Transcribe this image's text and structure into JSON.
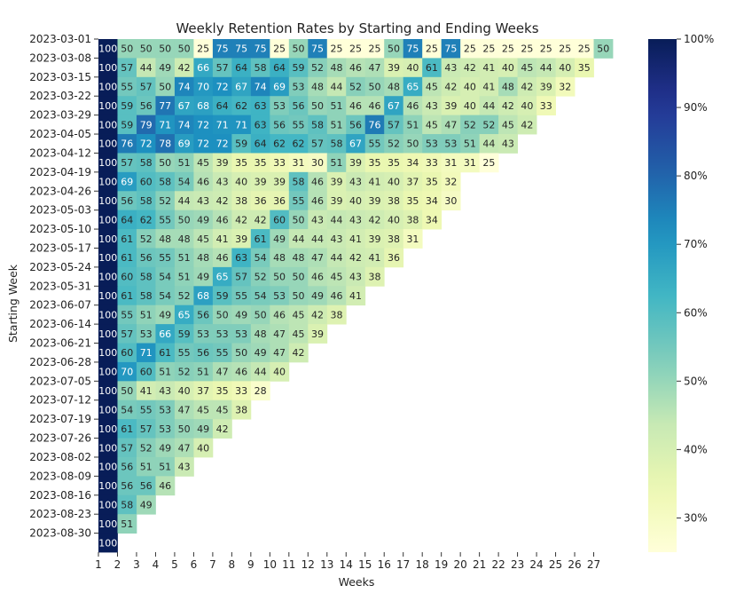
{
  "chart_data": {
    "type": "heatmap",
    "title": "Weekly Retention Rates by Starting and Ending Weeks",
    "xlabel": "Weeks",
    "ylabel": "Starting Week",
    "x": [
      1,
      2,
      3,
      4,
      5,
      6,
      7,
      8,
      9,
      10,
      11,
      12,
      13,
      14,
      15,
      16,
      17,
      18,
      19,
      20,
      21,
      22,
      23,
      24,
      25,
      26,
      27
    ],
    "y": [
      "2023-03-01",
      "2023-03-08",
      "2023-03-15",
      "2023-03-22",
      "2023-03-29",
      "2023-04-05",
      "2023-04-12",
      "2023-04-19",
      "2023-04-26",
      "2023-05-03",
      "2023-05-10",
      "2023-05-17",
      "2023-05-24",
      "2023-05-31",
      "2023-06-07",
      "2023-06-14",
      "2023-06-21",
      "2023-06-28",
      "2023-07-05",
      "2023-07-12",
      "2023-07-19",
      "2023-07-26",
      "2023-08-02",
      "2023-08-09",
      "2023-08-16",
      "2023-08-23",
      "2023-08-30"
    ],
    "values": [
      [
        100,
        50,
        50,
        50,
        50,
        25,
        75,
        75,
        75,
        25,
        50,
        75,
        25,
        25,
        25,
        50,
        75,
        25,
        75,
        25,
        25,
        25,
        25,
        25,
        25,
        25,
        50
      ],
      [
        100,
        57,
        44,
        49,
        42,
        66,
        57,
        64,
        58,
        64,
        59,
        52,
        48,
        46,
        47,
        39,
        40,
        61,
        43,
        42,
        41,
        40,
        45,
        44,
        40,
        35
      ],
      [
        100,
        55,
        57,
        50,
        74,
        70,
        72,
        67,
        74,
        69,
        53,
        48,
        44,
        52,
        50,
        48,
        65,
        45,
        42,
        40,
        41,
        48,
        42,
        39,
        32
      ],
      [
        100,
        59,
        56,
        77,
        67,
        68,
        64,
        62,
        63,
        53,
        56,
        50,
        51,
        46,
        46,
        67,
        46,
        43,
        39,
        40,
        44,
        42,
        40,
        33
      ],
      [
        100,
        59,
        79,
        71,
        74,
        72,
        71,
        71,
        63,
        56,
        55,
        58,
        51,
        56,
        76,
        57,
        51,
        45,
        47,
        52,
        52,
        45,
        42
      ],
      [
        100,
        76,
        72,
        78,
        69,
        72,
        72,
        59,
        64,
        62,
        62,
        57,
        58,
        67,
        55,
        52,
        50,
        53,
        53,
        51,
        44,
        43
      ],
      [
        100,
        57,
        58,
        50,
        51,
        45,
        39,
        35,
        35,
        33,
        31,
        30,
        51,
        39,
        35,
        35,
        34,
        33,
        31,
        31,
        25
      ],
      [
        100,
        69,
        60,
        58,
        54,
        46,
        43,
        40,
        39,
        39,
        58,
        46,
        39,
        43,
        41,
        40,
        37,
        35,
        32
      ],
      [
        100,
        56,
        58,
        52,
        44,
        43,
        42,
        38,
        36,
        36,
        55,
        46,
        39,
        40,
        39,
        38,
        35,
        34,
        30
      ],
      [
        100,
        64,
        62,
        55,
        50,
        49,
        46,
        42,
        42,
        60,
        50,
        43,
        44,
        43,
        42,
        40,
        38,
        34
      ],
      [
        100,
        61,
        52,
        48,
        48,
        45,
        41,
        39,
        61,
        49,
        44,
        44,
        43,
        41,
        39,
        38,
        31
      ],
      [
        100,
        61,
        56,
        55,
        51,
        48,
        46,
        63,
        54,
        48,
        48,
        47,
        44,
        42,
        41,
        36
      ],
      [
        100,
        60,
        58,
        54,
        51,
        49,
        65,
        57,
        52,
        50,
        50,
        46,
        45,
        43,
        38
      ],
      [
        100,
        61,
        58,
        54,
        52,
        68,
        59,
        55,
        54,
        53,
        50,
        49,
        46,
        41
      ],
      [
        100,
        55,
        51,
        49,
        65,
        56,
        50,
        49,
        50,
        46,
        45,
        42,
        38
      ],
      [
        100,
        57,
        53,
        66,
        59,
        53,
        53,
        53,
        48,
        47,
        45,
        39
      ],
      [
        100,
        60,
        71,
        61,
        55,
        56,
        55,
        50,
        49,
        47,
        42
      ],
      [
        100,
        70,
        60,
        51,
        52,
        51,
        47,
        46,
        44,
        40
      ],
      [
        100,
        50,
        41,
        43,
        40,
        37,
        35,
        33,
        28
      ],
      [
        100,
        54,
        55,
        53,
        47,
        45,
        45,
        38
      ],
      [
        100,
        61,
        57,
        53,
        50,
        49,
        42
      ],
      [
        100,
        57,
        52,
        49,
        47,
        40
      ],
      [
        100,
        56,
        51,
        51,
        43
      ],
      [
        100,
        56,
        56,
        46
      ],
      [
        100,
        58,
        49
      ],
      [
        100,
        51
      ],
      [
        100
      ]
    ],
    "colormap": "YlGnBu",
    "vmin": 25,
    "vmax": 100,
    "colorbar_ticks": [
      "30%",
      "40%",
      "50%",
      "60%",
      "70%",
      "80%",
      "90%",
      "100%"
    ],
    "colorbar_tick_values": [
      30,
      40,
      50,
      60,
      70,
      80,
      90,
      100
    ],
    "grid": false
  }
}
